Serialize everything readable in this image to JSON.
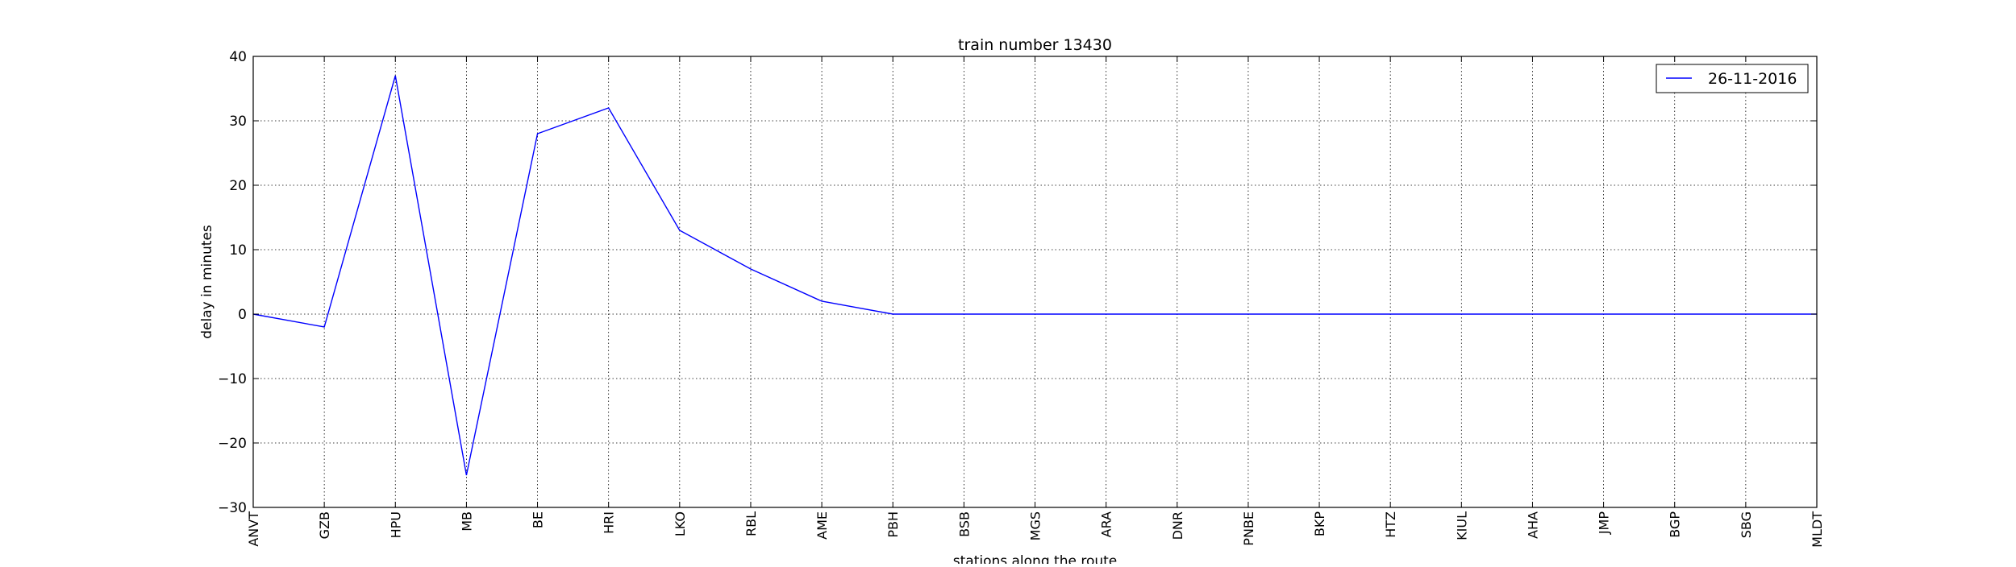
{
  "chart_data": {
    "type": "line",
    "title": "train number 13430",
    "xlabel": "stations along the route",
    "ylabel": "delay in minutes",
    "categories": [
      "ANVT",
      "GZB",
      "HPU",
      "MB",
      "BE",
      "HRI",
      "LKO",
      "RBL",
      "AME",
      "PBH",
      "BSB",
      "MGS",
      "ARA",
      "DNR",
      "PNBE",
      "BKP",
      "HTZ",
      "KIUL",
      "AHA",
      "JMP",
      "BGP",
      "SBG",
      "MLDT"
    ],
    "ylim": [
      -30,
      40
    ],
    "yticks": [
      -30,
      -20,
      -10,
      0,
      10,
      20,
      30,
      40
    ],
    "ytick_labels": [
      "−30",
      "−20",
      "−10",
      "0",
      "10",
      "20",
      "30",
      "40"
    ],
    "grid": true,
    "legend_position": "top-right",
    "series": [
      {
        "name": "26-11-2016",
        "color": "#0000ff",
        "values": [
          0,
          -2,
          37,
          -25,
          28,
          32,
          13,
          7,
          2,
          0,
          0,
          0,
          0,
          0,
          0,
          0,
          0,
          0,
          0,
          0,
          0,
          0,
          0
        ]
      }
    ]
  }
}
